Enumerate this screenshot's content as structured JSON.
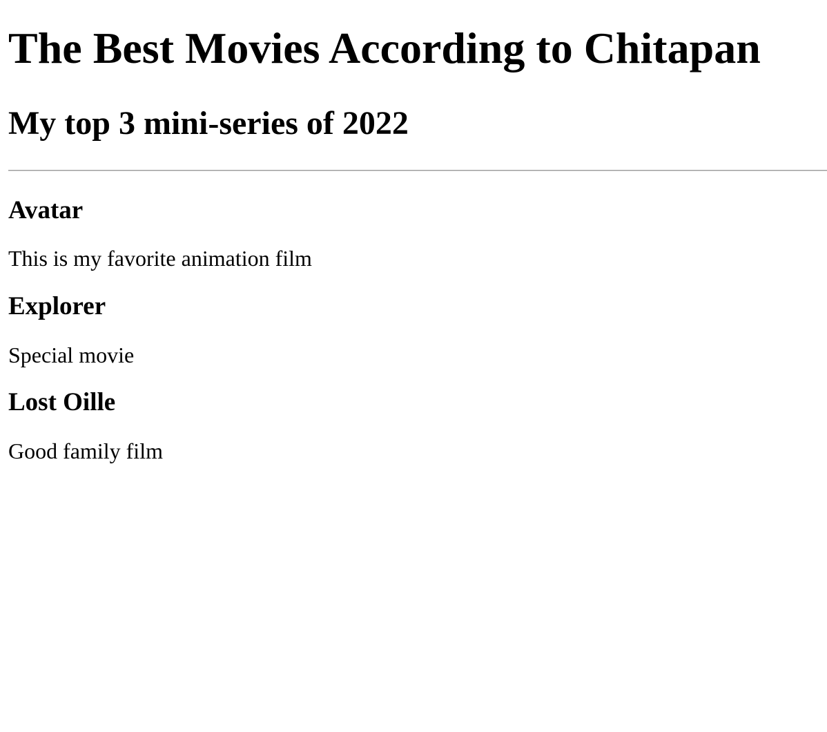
{
  "page": {
    "title": "The Best Movies According to Chitapan",
    "subtitle": "My top 3 mini-series of 2022"
  },
  "movies": [
    {
      "name": "Avatar",
      "description": "This is my favorite animation film"
    },
    {
      "name": "Explorer",
      "description": "Special movie"
    },
    {
      "name": "Lost Oille",
      "description": "Good family film"
    }
  ]
}
